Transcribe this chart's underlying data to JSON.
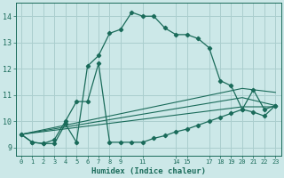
{
  "xlabel": "Humidex (Indice chaleur)",
  "bg_color": "#cce8e8",
  "grid_color": "#aacece",
  "line_color": "#1a6b5a",
  "xlim": [
    -0.5,
    23.5
  ],
  "ylim": [
    8.7,
    14.5
  ],
  "xticks": [
    0,
    1,
    2,
    3,
    4,
    5,
    6,
    7,
    8,
    9,
    11,
    14,
    15,
    17,
    18,
    19,
    20,
    21,
    22,
    23
  ],
  "xtick_labels": [
    "0",
    "1",
    "2",
    "3",
    "4",
    "5",
    "6",
    "7",
    "8",
    "9",
    "11",
    "14",
    "15",
    "17",
    "18",
    "19",
    "20",
    "21",
    "22",
    "23"
  ],
  "yticks": [
    9,
    10,
    11,
    12,
    13,
    14
  ],
  "line1_x": [
    0,
    1,
    2,
    3,
    4,
    5,
    6,
    7,
    8,
    9,
    10,
    11,
    12,
    13,
    14,
    15,
    16,
    17,
    18,
    19,
    20,
    21,
    22,
    23
  ],
  "line1_y": [
    9.5,
    9.2,
    9.15,
    9.15,
    9.9,
    9.2,
    12.1,
    12.5,
    13.35,
    13.5,
    14.15,
    14.0,
    14.0,
    13.55,
    13.3,
    13.3,
    13.15,
    12.8,
    11.55,
    11.35,
    10.45,
    10.35,
    10.2,
    10.6
  ],
  "line2_x": [
    0,
    1,
    2,
    3,
    4,
    5,
    6,
    7,
    8,
    9,
    10,
    11,
    12,
    13,
    14,
    15,
    16,
    17,
    18,
    19,
    20,
    21,
    22,
    23
  ],
  "line2_y": [
    9.5,
    9.2,
    9.15,
    9.3,
    10.0,
    10.75,
    10.75,
    12.2,
    9.2,
    9.2,
    9.2,
    9.2,
    9.35,
    9.45,
    9.6,
    9.7,
    9.85,
    10.0,
    10.15,
    10.3,
    10.45,
    11.2,
    10.45,
    10.6
  ],
  "line3_x": [
    0,
    20,
    23
  ],
  "line3_y": [
    9.5,
    11.25,
    11.1
  ],
  "line4_x": [
    0,
    20,
    23
  ],
  "line4_y": [
    9.5,
    10.9,
    10.6
  ],
  "line5_x": [
    0,
    20,
    23
  ],
  "line5_y": [
    9.5,
    10.55,
    10.55
  ]
}
